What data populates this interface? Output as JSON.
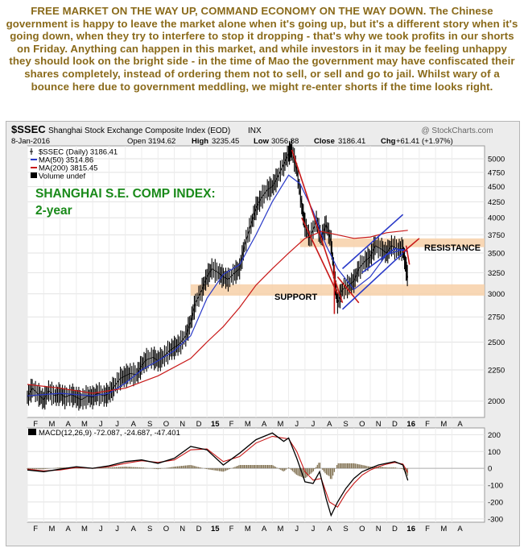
{
  "commentary": "FREE MARKET ON THE WAY UP, COMMAND ECONOMY ON THE WAY DOWN. The Chinese government is happy to leave the market alone when it's going up, but it's a different story when it's going down, when they try to interfere to stop it dropping - that's why we took profits in our shorts on Friday. Anything can happen in this market, and while investors in it may be feeling unhappy they should look on the bright side - in the time of Mao the government may have confiscated their shares completely, instead of ordering them not to sell, or sell and go to jail. Whilst wary of a bounce here due to government meddling, we might re-enter shorts if the time looks right.",
  "header": {
    "symbol": "$SSEC",
    "name": "Shanghai Stock Exchange Composite Index (EOD)",
    "exchange": "INX",
    "brand": "@ StockCharts.com",
    "date": "8-Jan-2016",
    "open_label": "Open",
    "open": "3194.62",
    "high_label": "High",
    "high": "3235.45",
    "low_label": "Low",
    "low": "3056.88",
    "close_label": "Close",
    "close": "3186.41",
    "chg_label": "Chg",
    "chg": "+61.41 (+1.97%)"
  },
  "legend": [
    {
      "label": "$SSEC (Daily) 3186.41",
      "color": "#000000",
      "swatch": "bar"
    },
    {
      "label": "MA(50) 3514.86",
      "color": "#2838c8",
      "swatch": "line"
    },
    {
      "label": "MA(200) 3815.45",
      "color": "#c81818",
      "swatch": "line"
    },
    {
      "label": "Volume undef",
      "color": "#000000",
      "swatch": "vol"
    }
  ],
  "annotations": {
    "title_line1": "SHANGHAI S.E. COMP INDEX:",
    "title_line2": "2-year",
    "resistance": "RESISTANCE",
    "support": "SUPPORT",
    "color": "#1a8a1a"
  },
  "macd_label": "MACD(12,26,9) -72.087, -24.687, -47.401",
  "colors": {
    "price": "#000000",
    "ma50": "#2838c8",
    "ma200": "#c81818",
    "zone": "#f7d0a8",
    "trend_red": "#c81818",
    "trend_blue": "#2838c8",
    "macd": "#000000",
    "signal": "#c81818",
    "hist": "#807050",
    "panel_bg": "#ffffff",
    "frame_bg": "#ececec"
  },
  "chart_data": [
    {
      "type": "line",
      "title": "",
      "x_ticks": [
        "F",
        "M",
        "A",
        "M",
        "J",
        "J",
        "A",
        "S",
        "O",
        "N",
        "D",
        "15",
        "F",
        "M",
        "A",
        "M",
        "J",
        "J",
        "A",
        "S",
        "O",
        "N",
        "D",
        "16",
        "F",
        "M",
        "A"
      ],
      "x_label_bold": [
        "15",
        "16"
      ],
      "y_ticks": [
        2000,
        2250,
        2500,
        2750,
        3000,
        3250,
        3500,
        3750,
        4000,
        4250,
        4500,
        4750,
        5000
      ],
      "ylim": [
        1880,
        5250
      ],
      "log_scale": true,
      "x_range_months": [
        0,
        28
      ],
      "series": [
        {
          "role": "price",
          "points": [
            [
              0,
              2030
            ],
            [
              0.3,
              2100
            ],
            [
              0.7,
              2050
            ],
            [
              1,
              2010
            ],
            [
              1.3,
              2080
            ],
            [
              1.7,
              2040
            ],
            [
              2,
              2060
            ],
            [
              2.3,
              2030
            ],
            [
              2.7,
              2050
            ],
            [
              3,
              2030
            ],
            [
              3.3,
              2010
            ],
            [
              3.7,
              2040
            ],
            [
              4,
              2030
            ],
            [
              4.3,
              2060
            ],
            [
              4.7,
              2040
            ],
            [
              5,
              2060
            ],
            [
              5.3,
              2110
            ],
            [
              5.7,
              2180
            ],
            [
              6,
              2200
            ],
            [
              6.3,
              2220
            ],
            [
              6.7,
              2210
            ],
            [
              7,
              2290
            ],
            [
              7.3,
              2340
            ],
            [
              7.7,
              2360
            ],
            [
              8,
              2330
            ],
            [
              8.3,
              2360
            ],
            [
              8.7,
              2420
            ],
            [
              9,
              2450
            ],
            [
              9.3,
              2480
            ],
            [
              9.7,
              2560
            ],
            [
              10,
              2700
            ],
            [
              10.3,
              2900
            ],
            [
              10.7,
              3050
            ],
            [
              11,
              3200
            ],
            [
              11.3,
              3300
            ],
            [
              11.7,
              3250
            ],
            [
              12,
              3200
            ],
            [
              12.3,
              3170
            ],
            [
              12.7,
              3250
            ],
            [
              13,
              3300
            ],
            [
              13.3,
              3600
            ],
            [
              13.7,
              3900
            ],
            [
              14,
              4150
            ],
            [
              14.3,
              4300
            ],
            [
              14.7,
              4450
            ],
            [
              15,
              4500
            ],
            [
              15.3,
              4650
            ],
            [
              15.7,
              4900
            ],
            [
              16,
              5100
            ],
            [
              16.2,
              5170
            ],
            [
              16.5,
              4800
            ],
            [
              16.8,
              4200
            ],
            [
              17,
              3900
            ],
            [
              17.3,
              3700
            ],
            [
              17.7,
              3950
            ],
            [
              18,
              3700
            ],
            [
              18.3,
              3900
            ],
            [
              18.6,
              3650
            ],
            [
              18.8,
              3200
            ],
            [
              19,
              2900
            ],
            [
              19.3,
              3050
            ],
            [
              19.7,
              3100
            ],
            [
              20,
              3150
            ],
            [
              20.3,
              3300
            ],
            [
              20.7,
              3400
            ],
            [
              21,
              3450
            ],
            [
              21.3,
              3600
            ],
            [
              21.7,
              3550
            ],
            [
              22,
              3500
            ],
            [
              22.3,
              3600
            ],
            [
              22.7,
              3550
            ],
            [
              23,
              3560
            ],
            [
              23.2,
              3300
            ],
            [
              23.3,
              3190
            ]
          ]
        },
        {
          "role": "ma50",
          "points": [
            [
              0,
              2040
            ],
            [
              2,
              2060
            ],
            [
              4,
              2040
            ],
            [
              5,
              2060
            ],
            [
              6,
              2140
            ],
            [
              7,
              2250
            ],
            [
              8,
              2330
            ],
            [
              9,
              2420
            ],
            [
              10,
              2560
            ],
            [
              11,
              2950
            ],
            [
              12,
              3230
            ],
            [
              13,
              3350
            ],
            [
              14,
              3750
            ],
            [
              15,
              4250
            ],
            [
              16,
              4700
            ],
            [
              16.7,
              4550
            ],
            [
              17.5,
              4100
            ],
            [
              18.3,
              3600
            ],
            [
              19,
              3300
            ],
            [
              20,
              3050
            ],
            [
              21,
              3200
            ],
            [
              22,
              3480
            ],
            [
              23,
              3550
            ],
            [
              23.3,
              3515
            ]
          ]
        },
        {
          "role": "ma200",
          "points": [
            [
              0,
              2130
            ],
            [
              2,
              2100
            ],
            [
              4,
              2060
            ],
            [
              6,
              2100
            ],
            [
              8,
              2200
            ],
            [
              10,
              2350
            ],
            [
              11,
              2500
            ],
            [
              12,
              2650
            ],
            [
              13,
              2850
            ],
            [
              14,
              3100
            ],
            [
              15,
              3300
            ],
            [
              16,
              3500
            ],
            [
              17,
              3700
            ],
            [
              18,
              3800
            ],
            [
              19,
              3750
            ],
            [
              20,
              3700
            ],
            [
              21,
              3720
            ],
            [
              22,
              3780
            ],
            [
              23.3,
              3815
            ]
          ]
        }
      ],
      "zones": [
        {
          "name": "resistance",
          "y": [
            3580,
            3700
          ],
          "x": [
            16.7,
            28
          ]
        },
        {
          "name": "support",
          "y": [
            2980,
            3110
          ],
          "x": [
            10,
            28
          ]
        }
      ],
      "trendlines": [
        {
          "color": "trend_red",
          "points": [
            [
              16.2,
              5170
            ],
            [
              19.3,
              2900
            ]
          ]
        },
        {
          "color": "trend_red",
          "points": [
            [
              16.8,
              4000
            ],
            [
              19,
              3000
            ]
          ]
        },
        {
          "color": "trend_red",
          "points": [
            [
              19,
              3200
            ],
            [
              20.3,
              2900
            ]
          ]
        },
        {
          "color": "trend_red",
          "points": [
            [
              18.8,
              3350
            ],
            [
              18.8,
              2780
            ]
          ]
        },
        {
          "color": "trend_blue",
          "points": [
            [
              19.3,
              2830
            ],
            [
              23,
              3500
            ]
          ]
        },
        {
          "color": "trend_blue",
          "points": [
            [
              19.3,
              3300
            ],
            [
              23,
              4050
            ]
          ]
        },
        {
          "color": "trend_blue",
          "points": [
            [
              20.5,
              3250
            ],
            [
              22.5,
              3560
            ],
            [
              23.3,
              3520
            ]
          ]
        },
        {
          "color": "trend_red",
          "points": [
            [
              23,
              3510
            ],
            [
              24,
              3700
            ]
          ]
        },
        {
          "color": "trend_red",
          "points": [
            [
              23.2,
              3600
            ],
            [
              23.4,
              3350
            ]
          ]
        }
      ]
    },
    {
      "type": "line",
      "title": "",
      "x_ticks": [
        "F",
        "M",
        "A",
        "M",
        "J",
        "J",
        "A",
        "S",
        "O",
        "N",
        "D",
        "15",
        "F",
        "M",
        "A",
        "M",
        "J",
        "J",
        "A",
        "S",
        "O",
        "N",
        "D",
        "16",
        "F",
        "M",
        "A"
      ],
      "y_ticks": [
        -300,
        -200,
        -100,
        0,
        100,
        200
      ],
      "ylim": [
        -320,
        240
      ],
      "x_range_months": [
        0,
        28
      ],
      "series": [
        {
          "role": "macd",
          "points": [
            [
              0,
              -10
            ],
            [
              1,
              -20
            ],
            [
              2,
              -5
            ],
            [
              3,
              10
            ],
            [
              4,
              0
            ],
            [
              5,
              15
            ],
            [
              6,
              40
            ],
            [
              7,
              50
            ],
            [
              8,
              30
            ],
            [
              9,
              60
            ],
            [
              10,
              130
            ],
            [
              11,
              110
            ],
            [
              12,
              20
            ],
            [
              13,
              90
            ],
            [
              14,
              170
            ],
            [
              15,
              210
            ],
            [
              15.7,
              160
            ],
            [
              16,
              180
            ],
            [
              16.5,
              60
            ],
            [
              17,
              -80
            ],
            [
              17.5,
              -90
            ],
            [
              17.9,
              -20
            ],
            [
              18.3,
              -180
            ],
            [
              18.6,
              -280
            ],
            [
              19,
              -200
            ],
            [
              19.5,
              -120
            ],
            [
              20,
              -60
            ],
            [
              20.5,
              -20
            ],
            [
              21,
              0
            ],
            [
              21.5,
              20
            ],
            [
              22,
              30
            ],
            [
              22.5,
              40
            ],
            [
              23,
              20
            ],
            [
              23.3,
              -72
            ]
          ]
        },
        {
          "role": "signal",
          "points": [
            [
              0,
              -5
            ],
            [
              1,
              -15
            ],
            [
              2,
              -10
            ],
            [
              3,
              5
            ],
            [
              4,
              0
            ],
            [
              5,
              10
            ],
            [
              6,
              30
            ],
            [
              7,
              45
            ],
            [
              8,
              35
            ],
            [
              9,
              50
            ],
            [
              10,
              110
            ],
            [
              11,
              115
            ],
            [
              12,
              40
            ],
            [
              13,
              70
            ],
            [
              14,
              150
            ],
            [
              15,
              190
            ],
            [
              16,
              175
            ],
            [
              16.5,
              100
            ],
            [
              17,
              -20
            ],
            [
              17.5,
              -70
            ],
            [
              18,
              -60
            ],
            [
              18.5,
              -200
            ],
            [
              19,
              -230
            ],
            [
              19.5,
              -150
            ],
            [
              20,
              -90
            ],
            [
              20.5,
              -40
            ],
            [
              21,
              -10
            ],
            [
              21.5,
              10
            ],
            [
              22,
              25
            ],
            [
              22.5,
              35
            ],
            [
              23,
              25
            ],
            [
              23.3,
              -25
            ]
          ]
        }
      ]
    }
  ]
}
